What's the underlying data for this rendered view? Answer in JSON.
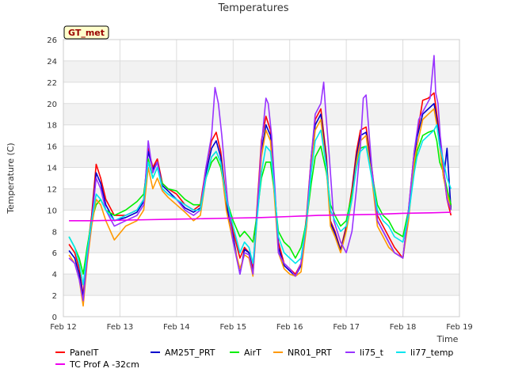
{
  "chart_data": {
    "type": "line",
    "title": "Temperatures",
    "xlabel": "Time",
    "ylabel": "Temperature (C)",
    "badge": "GT_met",
    "ylim": [
      0,
      26
    ],
    "yticks": [
      0,
      2,
      4,
      6,
      8,
      10,
      12,
      14,
      16,
      18,
      20,
      22,
      24,
      26
    ],
    "xlim": [
      12,
      19
    ],
    "xticks": [
      {
        "value": 12,
        "label": "Feb 12"
      },
      {
        "value": 13,
        "label": "Feb 13"
      },
      {
        "value": 14,
        "label": "Feb 14"
      },
      {
        "value": 15,
        "label": "Feb 15"
      },
      {
        "value": 16,
        "label": "Feb 16"
      },
      {
        "value": 17,
        "label": "Feb 17"
      },
      {
        "value": 18,
        "label": "Feb 18"
      },
      {
        "value": 19,
        "label": "Feb 19"
      }
    ],
    "grid": true,
    "background_bands": "alternating",
    "series": [
      {
        "name": "PanelT",
        "color": "#ff0000",
        "x": [
          12.1,
          12.2,
          12.28,
          12.35,
          12.42,
          12.5,
          12.58,
          12.66,
          12.75,
          12.9,
          13.1,
          13.3,
          13.42,
          13.5,
          13.58,
          13.66,
          13.75,
          13.85,
          14.0,
          14.15,
          14.3,
          14.42,
          14.52,
          14.62,
          14.7,
          14.78,
          14.88,
          15.0,
          15.12,
          15.2,
          15.28,
          15.35,
          15.42,
          15.5,
          15.58,
          15.66,
          15.72,
          15.8,
          15.9,
          16.0,
          16.1,
          16.2,
          16.3,
          16.38,
          16.45,
          16.55,
          16.65,
          16.72,
          16.8,
          16.9,
          17.0,
          17.1,
          17.18,
          17.25,
          17.35,
          17.45,
          17.55,
          17.65,
          17.75,
          17.85,
          18.0,
          18.1,
          18.2,
          18.25,
          18.35,
          18.45,
          18.55,
          18.6,
          18.65,
          18.72,
          18.78,
          18.85
        ],
        "y": [
          6.8,
          6.0,
          4.5,
          2.0,
          6.0,
          9.5,
          14.3,
          13.0,
          11.0,
          9.5,
          9.5,
          10.0,
          11.0,
          15.8,
          14.0,
          14.8,
          12.5,
          12.0,
          11.5,
          10.5,
          10.0,
          10.5,
          14.0,
          16.5,
          17.3,
          15.5,
          11.0,
          8.0,
          5.5,
          6.5,
          6.0,
          4.5,
          10.0,
          16.5,
          18.8,
          17.5,
          13.0,
          7.0,
          5.0,
          4.5,
          4.0,
          5.0,
          9.5,
          15.0,
          18.5,
          19.5,
          15.0,
          9.0,
          8.0,
          6.3,
          8.5,
          12.0,
          15.5,
          17.5,
          17.8,
          14.0,
          9.5,
          8.5,
          7.5,
          6.5,
          5.5,
          10.0,
          15.5,
          17.0,
          20.3,
          20.5,
          21.0,
          19.0,
          17.0,
          13.5,
          11.0,
          9.5
        ]
      },
      {
        "name": "TC Prof A -32cm",
        "color": "#ee00ee",
        "x": [
          12.1,
          12.5,
          13.0,
          13.5,
          14.0,
          14.5,
          15.0,
          15.5,
          16.0,
          16.5,
          17.0,
          17.5,
          18.0,
          18.5,
          18.85
        ],
        "y": [
          9.0,
          9.0,
          9.05,
          9.1,
          9.15,
          9.2,
          9.25,
          9.3,
          9.4,
          9.5,
          9.55,
          9.6,
          9.7,
          9.75,
          9.8
        ]
      },
      {
        "name": "AM25T_PRT",
        "color": "#0000cc",
        "x": [
          12.1,
          12.2,
          12.28,
          12.35,
          12.42,
          12.5,
          12.58,
          12.66,
          12.75,
          12.9,
          13.1,
          13.3,
          13.42,
          13.5,
          13.58,
          13.66,
          13.75,
          13.85,
          14.0,
          14.15,
          14.3,
          14.42,
          14.52,
          14.62,
          14.7,
          14.78,
          14.88,
          15.0,
          15.12,
          15.2,
          15.28,
          15.35,
          15.42,
          15.5,
          15.58,
          15.66,
          15.72,
          15.8,
          15.9,
          16.0,
          16.1,
          16.2,
          16.3,
          16.38,
          16.45,
          16.55,
          16.65,
          16.72,
          16.8,
          16.9,
          17.0,
          17.1,
          17.18,
          17.25,
          17.35,
          17.45,
          17.55,
          17.65,
          17.75,
          17.85,
          18.0,
          18.1,
          18.2,
          18.25,
          18.35,
          18.45,
          18.55,
          18.6,
          18.65,
          18.72,
          18.78,
          18.85
        ],
        "y": [
          6.2,
          5.5,
          4.0,
          1.8,
          5.5,
          9.0,
          13.5,
          12.5,
          10.5,
          9.0,
          9.3,
          9.8,
          10.8,
          15.5,
          13.8,
          14.5,
          12.3,
          11.8,
          11.0,
          10.2,
          9.8,
          10.2,
          13.5,
          15.8,
          16.5,
          15.0,
          10.5,
          7.5,
          4.0,
          6.3,
          6.0,
          4.0,
          9.5,
          15.5,
          18.0,
          17.0,
          12.5,
          6.5,
          4.8,
          4.3,
          3.8,
          4.8,
          9.0,
          14.5,
          18.0,
          19.0,
          14.5,
          8.8,
          7.8,
          6.2,
          8.2,
          11.5,
          15.0,
          17.0,
          17.3,
          13.5,
          9.0,
          8.0,
          7.0,
          6.0,
          5.5,
          9.5,
          15.0,
          16.8,
          19.0,
          19.5,
          20.0,
          18.5,
          16.5,
          13.0,
          15.8,
          10.0
        ]
      },
      {
        "name": "AirT",
        "color": "#00ee00",
        "x": [
          12.1,
          12.2,
          12.28,
          12.35,
          12.42,
          12.5,
          12.58,
          12.66,
          12.75,
          12.9,
          13.1,
          13.3,
          13.42,
          13.5,
          13.58,
          13.66,
          13.75,
          13.85,
          14.0,
          14.15,
          14.3,
          14.42,
          14.52,
          14.62,
          14.7,
          14.78,
          14.88,
          15.0,
          15.12,
          15.2,
          15.28,
          15.35,
          15.42,
          15.5,
          15.58,
          15.66,
          15.72,
          15.8,
          15.9,
          16.0,
          16.1,
          16.2,
          16.3,
          16.38,
          16.45,
          16.55,
          16.65,
          16.72,
          16.8,
          16.9,
          17.0,
          17.1,
          17.18,
          17.25,
          17.35,
          17.45,
          17.55,
          17.65,
          17.75,
          17.85,
          18.0,
          18.1,
          18.2,
          18.25,
          18.35,
          18.45,
          18.55,
          18.6,
          18.65,
          18.72,
          18.78,
          18.85
        ],
        "y": [
          7.5,
          6.5,
          5.5,
          4.0,
          6.5,
          9.0,
          10.5,
          11.0,
          10.0,
          9.5,
          10.0,
          10.8,
          11.5,
          14.8,
          13.0,
          14.0,
          12.5,
          12.0,
          11.8,
          11.0,
          10.5,
          10.5,
          13.0,
          14.5,
          15.0,
          14.0,
          11.0,
          9.0,
          7.5,
          8.0,
          7.5,
          7.0,
          9.5,
          13.0,
          14.5,
          14.5,
          12.0,
          8.0,
          7.0,
          6.5,
          5.5,
          6.5,
          9.0,
          12.5,
          15.0,
          16.0,
          13.5,
          10.5,
          9.5,
          8.5,
          9.0,
          11.5,
          14.0,
          15.8,
          16.0,
          13.5,
          10.5,
          9.5,
          9.0,
          8.0,
          7.5,
          10.0,
          14.0,
          15.5,
          17.0,
          17.3,
          17.5,
          16.5,
          14.5,
          13.5,
          12.0,
          10.5
        ]
      },
      {
        "name": "NR01_PRT",
        "color": "#ff9900",
        "x": [
          12.1,
          12.2,
          12.28,
          12.35,
          12.42,
          12.5,
          12.58,
          12.66,
          12.75,
          12.9,
          13.1,
          13.3,
          13.42,
          13.5,
          13.58,
          13.66,
          13.75,
          13.85,
          14.0,
          14.15,
          14.3,
          14.42,
          14.52,
          14.62,
          14.7,
          14.78,
          14.88,
          15.0,
          15.12,
          15.2,
          15.28,
          15.35,
          15.42,
          15.5,
          15.58,
          15.66,
          15.72,
          15.8,
          15.9,
          16.0,
          16.1,
          16.2,
          16.3,
          16.38,
          16.45,
          16.55,
          16.65,
          16.72,
          16.8,
          16.9,
          17.0,
          17.1,
          17.18,
          17.25,
          17.35,
          17.45,
          17.55,
          17.65,
          17.75,
          17.85,
          18.0,
          18.1,
          18.2,
          18.25,
          18.35,
          18.45,
          18.55,
          18.6,
          18.65,
          18.72,
          18.78,
          18.85
        ],
        "y": [
          5.8,
          5.0,
          3.5,
          1.0,
          5.0,
          8.5,
          11.0,
          10.5,
          9.0,
          7.2,
          8.5,
          9.0,
          10.0,
          14.0,
          12.0,
          13.0,
          11.8,
          11.2,
          10.5,
          9.8,
          9.0,
          9.5,
          13.0,
          15.0,
          15.5,
          14.5,
          10.0,
          7.0,
          4.5,
          5.8,
          5.5,
          3.8,
          9.0,
          15.0,
          17.5,
          16.5,
          12.0,
          6.0,
          4.5,
          4.0,
          3.8,
          4.2,
          8.5,
          14.0,
          17.5,
          18.5,
          14.0,
          8.5,
          7.5,
          6.0,
          8.0,
          11.0,
          14.5,
          16.5,
          17.0,
          13.0,
          8.5,
          7.5,
          6.5,
          6.0,
          5.5,
          9.0,
          14.5,
          16.0,
          18.5,
          19.0,
          19.5,
          18.0,
          16.0,
          13.0,
          11.5,
          10.0
        ]
      },
      {
        "name": "li75_t",
        "color": "#9933ff",
        "x": [
          12.1,
          12.2,
          12.28,
          12.35,
          12.42,
          12.5,
          12.58,
          12.66,
          12.75,
          12.9,
          13.1,
          13.3,
          13.42,
          13.5,
          13.58,
          13.66,
          13.75,
          13.85,
          14.0,
          14.15,
          14.3,
          14.42,
          14.52,
          14.62,
          14.68,
          14.74,
          14.8,
          14.9,
          15.0,
          15.12,
          15.2,
          15.28,
          15.35,
          15.42,
          15.5,
          15.58,
          15.62,
          15.68,
          15.74,
          15.8,
          15.9,
          16.0,
          16.1,
          16.2,
          16.3,
          16.38,
          16.45,
          16.55,
          16.6,
          16.64,
          16.7,
          16.78,
          16.9,
          17.0,
          17.1,
          17.18,
          17.25,
          17.3,
          17.35,
          17.45,
          17.55,
          17.65,
          17.75,
          17.85,
          18.0,
          18.1,
          18.2,
          18.28,
          18.38,
          18.48,
          18.55,
          18.58,
          18.62,
          18.66,
          18.72,
          18.78,
          18.85
        ],
        "y": [
          5.5,
          5.0,
          3.5,
          1.5,
          5.5,
          9.0,
          13.0,
          12.0,
          10.0,
          8.5,
          9.0,
          9.5,
          10.5,
          16.5,
          13.5,
          14.5,
          12.0,
          11.5,
          11.0,
          10.0,
          9.5,
          10.0,
          14.0,
          17.0,
          21.5,
          20.0,
          17.0,
          11.0,
          7.0,
          4.0,
          6.0,
          5.8,
          4.0,
          9.5,
          16.0,
          20.5,
          20.0,
          17.0,
          12.0,
          6.0,
          5.0,
          4.5,
          3.8,
          5.0,
          9.0,
          15.0,
          19.0,
          20.0,
          22.0,
          19.0,
          15.0,
          9.0,
          7.0,
          6.0,
          8.0,
          12.0,
          16.0,
          20.5,
          20.8,
          14.0,
          9.0,
          8.0,
          7.0,
          6.0,
          5.5,
          10.0,
          15.5,
          18.5,
          19.5,
          20.5,
          24.5,
          21.0,
          20.0,
          17.0,
          14.0,
          11.0,
          10.0
        ]
      },
      {
        "name": "li77_temp",
        "color": "#00e5ee",
        "x": [
          12.1,
          12.2,
          12.28,
          12.35,
          12.42,
          12.5,
          12.58,
          12.66,
          12.75,
          12.9,
          13.1,
          13.3,
          13.42,
          13.5,
          13.58,
          13.66,
          13.75,
          13.85,
          14.0,
          14.15,
          14.3,
          14.42,
          14.52,
          14.62,
          14.7,
          14.78,
          14.88,
          15.0,
          15.12,
          15.2,
          15.28,
          15.35,
          15.42,
          15.5,
          15.58,
          15.66,
          15.72,
          15.8,
          15.9,
          16.0,
          16.1,
          16.2,
          16.3,
          16.38,
          16.45,
          16.55,
          16.65,
          16.72,
          16.8,
          16.9,
          17.0,
          17.1,
          17.18,
          17.25,
          17.35,
          17.45,
          17.55,
          17.65,
          17.75,
          17.85,
          18.0,
          18.1,
          18.2,
          18.25,
          18.35,
          18.45,
          18.55,
          18.6,
          18.65,
          18.72,
          18.78,
          18.85
        ],
        "y": [
          7.5,
          6.5,
          5.0,
          3.0,
          6.0,
          9.0,
          11.5,
          11.0,
          10.0,
          9.0,
          9.5,
          10.0,
          11.0,
          14.5,
          13.0,
          14.0,
          12.0,
          11.5,
          11.0,
          10.5,
          10.0,
          10.0,
          13.0,
          15.0,
          15.5,
          14.5,
          11.0,
          8.5,
          6.0,
          7.0,
          6.5,
          5.0,
          9.0,
          13.5,
          16.0,
          15.5,
          12.5,
          7.5,
          6.0,
          5.5,
          5.0,
          5.5,
          9.0,
          13.5,
          16.5,
          17.5,
          14.0,
          10.0,
          9.0,
          8.0,
          8.5,
          11.0,
          14.0,
          15.5,
          16.0,
          13.0,
          10.0,
          9.0,
          8.5,
          7.5,
          7.0,
          9.5,
          13.5,
          15.0,
          16.5,
          17.0,
          17.5,
          18.0,
          16.0,
          14.5,
          13.0,
          12.0
        ]
      }
    ]
  }
}
